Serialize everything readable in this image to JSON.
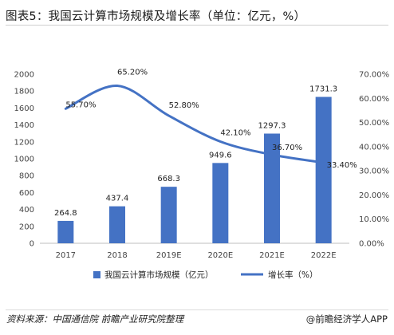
{
  "title": "图表5：我国云计算市场规模及增长率（单位：亿元，%）",
  "footer": {
    "source": "资料来源：中国通信院 前瞻产业研究院整理",
    "brand": "@前瞻经济学人APP"
  },
  "colors": {
    "bar": "#4472C4",
    "line": "#4472C4"
  },
  "chart_data": {
    "type": "bar",
    "categories": [
      "2017",
      "2018",
      "2019E",
      "2020E",
      "2021E",
      "2022E"
    ],
    "series": [
      {
        "name": "我国云计算市场规模（亿元）",
        "type": "bar",
        "axis": "left",
        "values": [
          264.8,
          437.4,
          668.3,
          949.6,
          1297.3,
          1731.3
        ],
        "labels": [
          "264.8",
          "437.4",
          "668.3",
          "949.6",
          "1297.3",
          "1731.3"
        ]
      },
      {
        "name": "增长率（%）",
        "type": "line",
        "axis": "right",
        "smooth": true,
        "values": [
          55.7,
          65.2,
          52.8,
          42.1,
          36.7,
          33.4
        ],
        "labels": [
          "55.70%",
          "65.20%",
          "52.80%",
          "42.10%",
          "36.70%",
          "33.40%"
        ]
      }
    ],
    "y_left": {
      "min": 0,
      "max": 2000,
      "step": 200
    },
    "y_right": {
      "min": 0,
      "max": 70,
      "step": 10
    },
    "y_left_ticks": [
      "0",
      "200",
      "400",
      "600",
      "800",
      "1000",
      "1200",
      "1400",
      "1600",
      "1800",
      "2000"
    ],
    "y_right_ticks": [
      "0.00%",
      "10.00%",
      "20.00%",
      "30.00%",
      "40.00%",
      "50.00%",
      "60.00%",
      "70.00%"
    ],
    "legend_position": "bottom",
    "grid": false
  }
}
